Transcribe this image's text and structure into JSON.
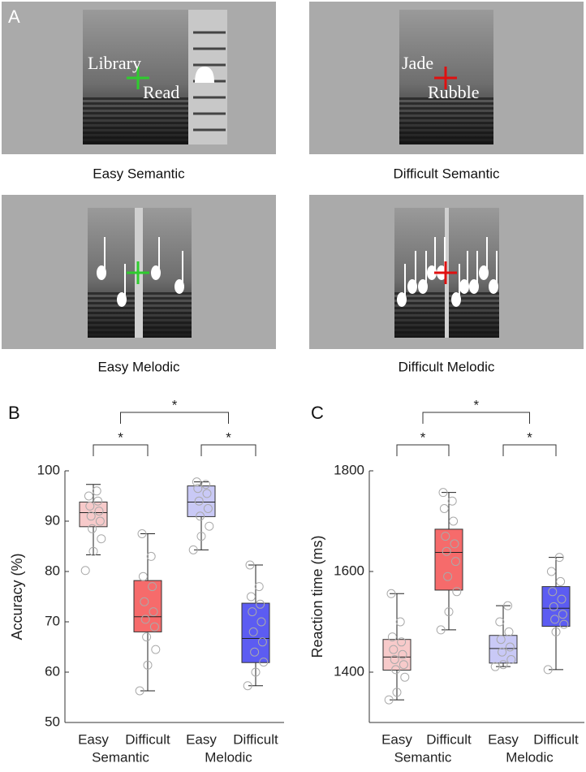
{
  "panel_a": {
    "label": "A",
    "panels": [
      {
        "caption": "Easy Semantic",
        "words": [
          "Library",
          "Read"
        ]
      },
      {
        "caption": "Difficult Semantic",
        "words": [
          "Jade",
          "Rubble"
        ]
      },
      {
        "caption": "Easy Melodic"
      },
      {
        "caption": "Difficult Melodic"
      }
    ]
  },
  "chart_data": [
    {
      "type": "box",
      "panel_label": "B",
      "ylabel": "Accuracy (%)",
      "ylim": [
        50,
        100
      ],
      "yticks": [
        50,
        60,
        70,
        80,
        90,
        100
      ],
      "categories": [
        "Easy",
        "Difficult",
        "Easy",
        "Difficult"
      ],
      "groups": [
        "Semantic",
        "Melodic"
      ],
      "colors": [
        "#f7caca",
        "#f66b6b",
        "#c9c9f6",
        "#5c5cf2"
      ],
      "boxes": [
        {
          "min": 83.3,
          "q1": 88.9,
          "median": 91.7,
          "q3": 93.8,
          "max": 97.3,
          "points": [
            80.2,
            84,
            86.5,
            88.5,
            90,
            91,
            92,
            93,
            94,
            95,
            96
          ]
        },
        {
          "min": 56.3,
          "q1": 68,
          "median": 71,
          "q3": 78.2,
          "max": 87.5,
          "points": [
            56.3,
            61.4,
            64.5,
            67,
            69,
            70.5,
            72,
            74,
            77,
            79,
            83,
            87.5
          ]
        },
        {
          "min": 84.3,
          "q1": 90.9,
          "median": 93.8,
          "q3": 97,
          "max": 97.8,
          "points": [
            84.3,
            87,
            89,
            91,
            92.5,
            94,
            95.5,
            96.5,
            97.3,
            97.8
          ]
        },
        {
          "min": 57.3,
          "q1": 61.9,
          "median": 66.7,
          "q3": 73.7,
          "max": 81.3,
          "points": [
            57.3,
            60,
            62,
            64,
            66,
            68,
            70,
            72,
            73.5,
            75,
            77,
            81.3
          ]
        }
      ],
      "annotations": [
        "*",
        "*",
        "*"
      ]
    },
    {
      "type": "box",
      "panel_label": "C",
      "ylabel": "Reaction time (ms)",
      "ylim": [
        1300,
        1800
      ],
      "yticks": [
        1400,
        1600,
        1800
      ],
      "categories": [
        "Easy",
        "Difficult",
        "Easy",
        "Difficult"
      ],
      "groups": [
        "Semantic",
        "Melodic"
      ],
      "colors": [
        "#f7caca",
        "#f66b6b",
        "#c9c9f6",
        "#5c5cf2"
      ],
      "boxes": [
        {
          "min": 1345,
          "q1": 1404,
          "median": 1430,
          "q3": 1465,
          "max": 1556,
          "points": [
            1345,
            1360,
            1390,
            1405,
            1415,
            1425,
            1435,
            1445,
            1460,
            1470,
            1500,
            1556
          ]
        },
        {
          "min": 1484,
          "q1": 1563,
          "median": 1638,
          "q3": 1684,
          "max": 1757,
          "points": [
            1484,
            1520,
            1560,
            1590,
            1620,
            1640,
            1655,
            1670,
            1700,
            1725,
            1740,
            1757
          ]
        },
        {
          "min": 1411,
          "q1": 1418,
          "median": 1447,
          "q3": 1473,
          "max": 1532,
          "points": [
            1411,
            1415,
            1425,
            1440,
            1450,
            1465,
            1480,
            1500,
            1532
          ]
        },
        {
          "min": 1405,
          "q1": 1491,
          "median": 1527,
          "q3": 1570,
          "max": 1628,
          "points": [
            1405,
            1480,
            1495,
            1505,
            1515,
            1530,
            1545,
            1560,
            1580,
            1600,
            1628
          ]
        }
      ],
      "annotations": [
        "*",
        "*",
        "*"
      ]
    }
  ]
}
